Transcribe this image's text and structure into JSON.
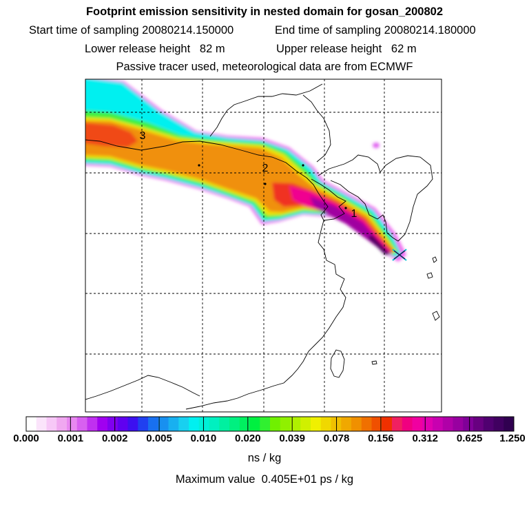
{
  "header": {
    "title": "Footprint emission sensitivity in nested domain for gosan_200802",
    "start_label": "Start time of sampling 20080214.150000",
    "end_label": "End time of sampling 20080214.180000",
    "lower_label": "Lower release height   82 m",
    "upper_label": "Upper release height   62 m",
    "tracer_label": "Passive tracer used, meteorological data are from ECMWF"
  },
  "chart_data": {
    "type": "heatmap",
    "title": "Footprint emission sensitivity in nested domain for gosan_200802",
    "colorbar": {
      "unit": "ns / kg",
      "tick_labels": [
        "0.000",
        "0.001",
        "0.002",
        "0.005",
        "0.010",
        "0.020",
        "0.039",
        "0.078",
        "0.156",
        "0.312",
        "0.625",
        "1.250"
      ],
      "colors": [
        "#ffffff",
        "#fbe4fb",
        "#f7c8f7",
        "#f0a8f0",
        "#e888f0",
        "#d860f0",
        "#c030f0",
        "#a000f0",
        "#8000f0",
        "#6000f0",
        "#3c10f0",
        "#2040f0",
        "#1870f0",
        "#1890f0",
        "#18b0f0",
        "#18d0f0",
        "#00f0f0",
        "#00f0d8",
        "#00f0c0",
        "#00f0a0",
        "#00f080",
        "#00f060",
        "#00f040",
        "#30f030",
        "#70f000",
        "#90f000",
        "#b0f000",
        "#d0f000",
        "#f0f000",
        "#f0d800",
        "#f0c000",
        "#f0a800",
        "#f09000",
        "#f07000",
        "#f05000",
        "#f03000",
        "#f02060",
        "#f00080",
        "#f000a0",
        "#e000b0",
        "#c800b0",
        "#b000a8",
        "#9800a0",
        "#800098",
        "#680080",
        "#500070",
        "#400060",
        "#300050"
      ]
    },
    "trajectory_labels": [
      "1",
      "2",
      "3"
    ],
    "max_value": "Maximum value  0.405E+01 ps / kg"
  }
}
